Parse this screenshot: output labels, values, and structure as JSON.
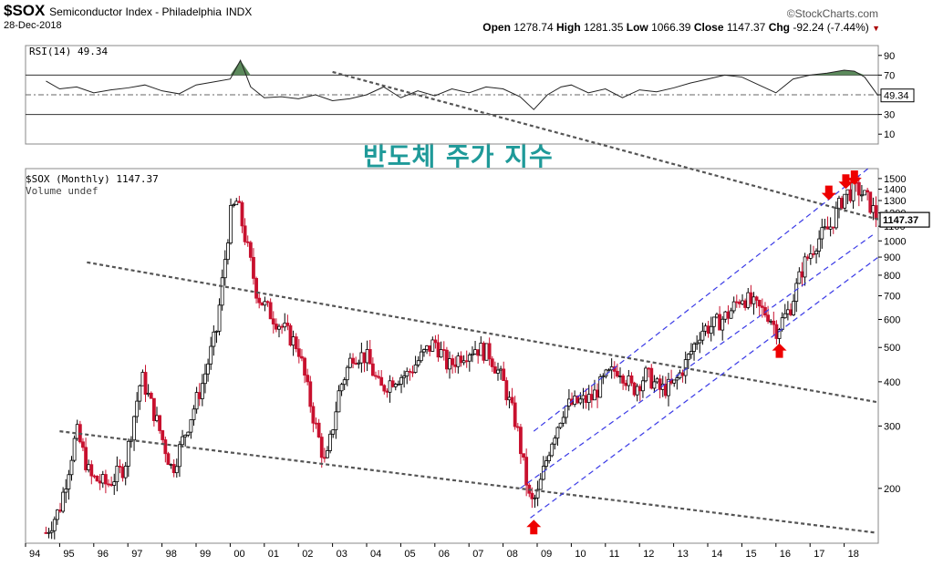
{
  "header": {
    "symbol": "$SOX",
    "name": "Semiconductor Index - Philadelphia",
    "exchange": "INDX",
    "date": "28-Dec-2018",
    "brand": "©StockCharts.com",
    "open_label": "Open",
    "open": "1278.74",
    "high_label": "High",
    "high": "1281.35",
    "low_label": "Low",
    "low": "1066.39",
    "close_label": "Close",
    "close": "1147.37",
    "chg_label": "Chg",
    "chg": "-92.24 (-7.44%)",
    "chg_marker": "▼"
  },
  "overlay_title": "반도체 주가 지수",
  "colors": {
    "up": "#000000",
    "down": "#c8102e",
    "trend": "#555555",
    "channel": "#3b3be6",
    "arrow": "#ee0000",
    "rsi_fill": "#5c8a5c",
    "text_overlay": "#1f9a99"
  },
  "chart_data": [
    {
      "type": "line",
      "label": "RSI(14) 49.34",
      "series_label": "RSI(14)",
      "last_value": "49.34",
      "ylim": [
        0,
        100
      ],
      "yticks": [
        90,
        70,
        50,
        30,
        10
      ],
      "reference_lines": [
        70,
        50,
        30
      ],
      "x": [
        1994.6,
        1995.0,
        1995.5,
        1996.0,
        1996.5,
        1997.0,
        1997.5,
        1998.0,
        1998.5,
        1999.0,
        1999.5,
        2000.0,
        2000.3,
        2000.6,
        2001.0,
        2001.5,
        2002.0,
        2002.5,
        2003.0,
        2003.5,
        2004.0,
        2004.5,
        2005.0,
        2005.5,
        2006.0,
        2006.5,
        2007.0,
        2007.5,
        2008.0,
        2008.5,
        2008.9,
        2009.3,
        2009.7,
        2010.0,
        2010.5,
        2011.0,
        2011.5,
        2012.0,
        2012.5,
        2013.0,
        2013.5,
        2014.0,
        2014.5,
        2015.0,
        2015.5,
        2016.0,
        2016.5,
        2017.0,
        2017.5,
        2018.0,
        2018.3,
        2018.6,
        2018.99
      ],
      "values": [
        64,
        56,
        58,
        52,
        55,
        57,
        60,
        54,
        51,
        60,
        63,
        66,
        85,
        58,
        47,
        48,
        46,
        50,
        44,
        46,
        50,
        58,
        47,
        54,
        49,
        56,
        52,
        58,
        56,
        48,
        35,
        50,
        58,
        60,
        52,
        56,
        47,
        55,
        53,
        57,
        62,
        66,
        70,
        68,
        60,
        52,
        66,
        70,
        72,
        75,
        74,
        68,
        49.34
      ]
    },
    {
      "type": "candlestick",
      "label": "$SOX (Monthly) 1147.37",
      "secondary_label": "Volume undef",
      "y_scale": "log",
      "ylim": [
        140,
        1600
      ],
      "yticks": [
        1500,
        1400,
        1300,
        1200,
        1100,
        1000,
        900,
        800,
        700,
        600,
        500,
        400,
        300,
        200
      ],
      "xlim": [
        1994.0,
        2019.0
      ],
      "xticks": [
        "94",
        "95",
        "96",
        "97",
        "98",
        "99",
        "00",
        "01",
        "02",
        "03",
        "04",
        "05",
        "06",
        "07",
        "08",
        "09",
        "10",
        "11",
        "12",
        "13",
        "14",
        "15",
        "16",
        "17",
        "18"
      ],
      "last_price": "1147.37",
      "x": [
        1994.6,
        1995.0,
        1995.5,
        1995.9,
        1996.4,
        1996.9,
        1997.4,
        1997.8,
        1998.3,
        1998.8,
        1999.2,
        1999.6,
        2000.0,
        2000.2,
        2000.5,
        2000.8,
        2001.2,
        2001.6,
        2002.0,
        2002.4,
        2002.8,
        2003.2,
        2003.6,
        2004.0,
        2004.4,
        2004.8,
        2005.2,
        2005.6,
        2006.0,
        2006.4,
        2006.8,
        2007.2,
        2007.6,
        2008.0,
        2008.4,
        2008.8,
        2009.0,
        2009.4,
        2009.8,
        2010.2,
        2010.6,
        2011.0,
        2011.4,
        2011.8,
        2012.2,
        2012.6,
        2013.0,
        2013.4,
        2013.8,
        2014.2,
        2014.6,
        2015.0,
        2015.4,
        2015.8,
        2016.0,
        2016.4,
        2016.8,
        2017.2,
        2017.6,
        2018.0,
        2018.4,
        2018.7,
        2018.99
      ],
      "values": [
        150,
        175,
        290,
        215,
        205,
        230,
        415,
        320,
        225,
        310,
        400,
        560,
        1180,
        1300,
        960,
        700,
        620,
        560,
        500,
        330,
        230,
        380,
        480,
        470,
        380,
        410,
        420,
        470,
        520,
        440,
        480,
        500,
        480,
        400,
        300,
        180,
        190,
        270,
        340,
        350,
        360,
        410,
        440,
        380,
        420,
        380,
        390,
        460,
        560,
        580,
        620,
        700,
        650,
        620,
        560,
        640,
        850,
        1000,
        1100,
        1350,
        1400,
        1300,
        1147.37
      ],
      "trendlines": [
        {
          "name": "upper-long-down",
          "x": [
            1995.8,
            2019.0
          ],
          "values": [
            870,
            350
          ]
        },
        {
          "name": "lower-long-down",
          "x": [
            1995.0,
            2018.9
          ],
          "values": [
            290,
            150
          ]
        },
        {
          "name": "top-down",
          "x": [
            2003.0,
            2019.0
          ],
          "values": [
            3000,
            1150
          ]
        },
        {
          "name": "channel-upper",
          "x": [
            2008.9,
            2018.7
          ],
          "values": [
            290,
            1600
          ]
        },
        {
          "name": "channel-mid",
          "x": [
            2008.5,
            2018.9
          ],
          "values": [
            200,
            1050
          ]
        },
        {
          "name": "channel-lower",
          "x": [
            2008.8,
            2019.0
          ],
          "values": [
            165,
            900
          ]
        }
      ],
      "arrows": [
        {
          "direction": "up",
          "x": 2008.9,
          "value": 165
        },
        {
          "direction": "up",
          "x": 2016.1,
          "value": 520
        },
        {
          "direction": "down",
          "x": 2017.55,
          "value": 1450
        },
        {
          "direction": "down",
          "x": 2018.05,
          "value": 1560
        },
        {
          "direction": "down",
          "x": 2018.3,
          "value": 1600
        }
      ]
    }
  ]
}
